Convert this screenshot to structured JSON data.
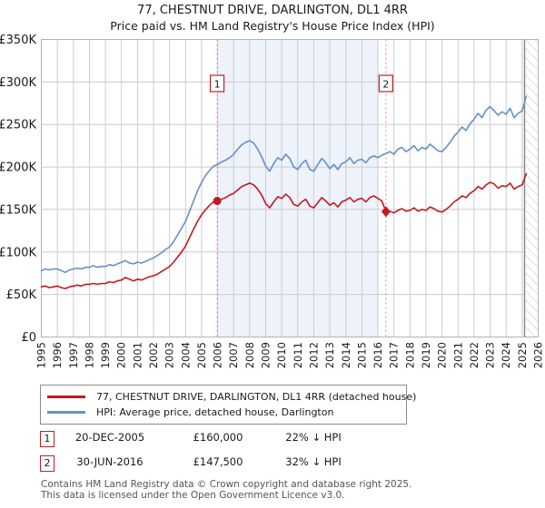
{
  "header": {
    "title": "77, CHESTNUT DRIVE, DARLINGTON, DL1 4RR",
    "subtitle": "Price paid vs. HM Land Registry's House Price Index (HPI)"
  },
  "legend": {
    "items": [
      {
        "label": "77, CHESTNUT DRIVE, DARLINGTON, DL1 4RR (detached house)",
        "color": "#c41a1f"
      },
      {
        "label": "HPI: Average price, detached house, Darlington",
        "color": "#6590c8"
      }
    ]
  },
  "sales": [
    {
      "index": "1",
      "date": "20-DEC-2005",
      "price": "£160,000",
      "hpi_diff": "22% ↓ HPI"
    },
    {
      "index": "2",
      "date": "30-JUN-2016",
      "price": "£147,500",
      "hpi_diff": "32% ↓ HPI"
    }
  ],
  "footer": {
    "line1": "Contains HM Land Registry data © Crown copyright and database right 2025.",
    "line2": "This data is licensed under the Open Government Licence v3.0."
  },
  "chart_data": {
    "type": "line",
    "title": "77, CHESTNUT DRIVE, DARLINGTON, DL1 4RR",
    "subtitle": "Price paid vs. HM Land Registry's House Price Index (HPI)",
    "xlabel": "",
    "ylabel": "",
    "xlim": [
      1995,
      2026
    ],
    "ylim": [
      0,
      350000
    ],
    "grid": true,
    "legend_position": "bottom",
    "x_ticks": [
      1995,
      1996,
      1997,
      1998,
      1999,
      2000,
      2001,
      2002,
      2003,
      2004,
      2005,
      2006,
      2007,
      2008,
      2009,
      2010,
      2011,
      2012,
      2013,
      2014,
      2015,
      2016,
      2017,
      2018,
      2019,
      2020,
      2021,
      2022,
      2023,
      2024,
      2025,
      2026
    ],
    "y_ticks": [
      {
        "value": 0,
        "label": "£0"
      },
      {
        "value": 50000,
        "label": "£50K"
      },
      {
        "value": 100000,
        "label": "£100K"
      },
      {
        "value": 150000,
        "label": "£150K"
      },
      {
        "value": 200000,
        "label": "£200K"
      },
      {
        "value": 250000,
        "label": "£250K"
      },
      {
        "value": 300000,
        "label": "£300K"
      },
      {
        "value": 350000,
        "label": "£350K"
      }
    ],
    "x_start": 1995,
    "x_step": 0.25,
    "series": [
      {
        "name": "77, CHESTNUT DRIVE, DARLINGTON, DL1 4RR (detached house)",
        "color": "#c41a1f",
        "values": [
          59000,
          60000,
          58000,
          59000,
          60000,
          58000,
          57000,
          59000,
          60000,
          61000,
          60000,
          62000,
          62000,
          63000,
          62000,
          63000,
          63000,
          65000,
          64000,
          66000,
          67000,
          70000,
          68000,
          66000,
          68000,
          67000,
          69000,
          71000,
          72000,
          74000,
          77000,
          80000,
          83000,
          88000,
          94000,
          100000,
          107000,
          117000,
          127000,
          136000,
          144000,
          150000,
          155000,
          159000,
          160000,
          162000,
          164000,
          167000,
          169000,
          173000,
          177000,
          179000,
          181000,
          179000,
          174000,
          167000,
          157000,
          152000,
          159000,
          165000,
          163000,
          168000,
          164000,
          156000,
          154000,
          159000,
          162000,
          154000,
          152000,
          158000,
          164000,
          160000,
          155000,
          158000,
          153000,
          159000,
          161000,
          164000,
          159000,
          162000,
          163000,
          159000,
          164000,
          166000,
          163000,
          160000,
          147500,
          148000,
          146000,
          149000,
          151000,
          148000,
          149000,
          152000,
          148000,
          150000,
          149000,
          153000,
          151000,
          148000,
          147000,
          150000,
          154000,
          159000,
          162000,
          166000,
          164000,
          169000,
          172000,
          177000,
          174000,
          179000,
          182000,
          180000,
          175000,
          178000,
          177000,
          181000,
          174000,
          177000,
          179000,
          192000
        ]
      },
      {
        "name": "HPI: Average price, detached house, Darlington",
        "color": "#6590c8",
        "values": [
          78000,
          80000,
          79000,
          80000,
          80000,
          78000,
          76000,
          79000,
          80000,
          81000,
          80000,
          82000,
          82000,
          84000,
          82000,
          83000,
          83000,
          85000,
          84000,
          86000,
          88000,
          90000,
          87000,
          86000,
          88000,
          87000,
          89000,
          91000,
          93000,
          96000,
          99000,
          103000,
          106000,
          112000,
          120000,
          128000,
          136000,
          148000,
          160000,
          172000,
          182000,
          190000,
          196000,
          201000,
          203000,
          206000,
          208000,
          211000,
          215000,
          221000,
          226000,
          229000,
          231000,
          228000,
          221000,
          212000,
          201000,
          195000,
          204000,
          211000,
          208000,
          215000,
          210000,
          200000,
          197000,
          204000,
          208000,
          197000,
          195000,
          203000,
          210000,
          205000,
          198000,
          203000,
          197000,
          204000,
          206000,
          211000,
          204000,
          208000,
          209000,
          205000,
          211000,
          213000,
          211000,
          214000,
          216000,
          218000,
          215000,
          221000,
          223000,
          218000,
          221000,
          225000,
          219000,
          223000,
          221000,
          227000,
          223000,
          219000,
          218000,
          223000,
          229000,
          236000,
          241000,
          247000,
          243000,
          251000,
          256000,
          263000,
          258000,
          267000,
          271000,
          266000,
          261000,
          265000,
          262000,
          269000,
          258000,
          263000,
          266000,
          283000
        ]
      }
    ],
    "sales_markers": [
      {
        "label": "1",
        "x": 2005.97,
        "price": 160000,
        "date": "20-DEC-2005",
        "pct_below_hpi": "22% ↓ HPI",
        "marker": "circle"
      },
      {
        "label": "2",
        "x": 2016.5,
        "price": 147500,
        "date": "30-JUN-2016",
        "pct_below_hpi": "32% ↓ HPI",
        "marker": "diamond"
      }
    ],
    "shaded_region": {
      "from": 2006,
      "to": 2016
    },
    "hatched_region": {
      "from": 2025.15,
      "to": 2026
    },
    "colors": {
      "price_paid": "#c41a1f",
      "hpi": "#6590c8",
      "sale_line": "#f08080",
      "sale_box_border": "#bb2222",
      "shaded_band": "#edf2fb",
      "gridline": "#cccccc",
      "plot_border": "#b3b3b3",
      "hatch_line": "#c0c0c0",
      "hatch_edge": "#8a8a8a"
    }
  }
}
